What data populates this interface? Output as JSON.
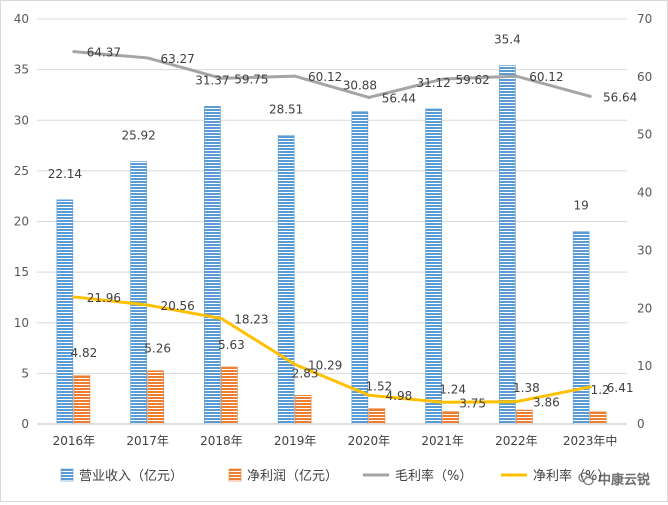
{
  "chart_data": {
    "type": "bar",
    "categories": [
      "2016年",
      "2017年",
      "2018年",
      "2019年",
      "2020年",
      "2021年",
      "2022年",
      "2023年中"
    ],
    "series": [
      {
        "name": "营业收入（亿元）",
        "type": "bar",
        "axis": "left",
        "color": "#5b9bd5",
        "values": [
          22.14,
          25.92,
          31.37,
          28.51,
          30.88,
          31.12,
          35.4,
          19
        ],
        "labels": [
          "22.14",
          "25.92",
          "31.37",
          "28.51",
          "30.88",
          "31.12",
          "35.4",
          "19"
        ]
      },
      {
        "name": "净利润（亿元）",
        "type": "bar",
        "axis": "left",
        "color": "#ed7d31",
        "values": [
          4.82,
          5.26,
          5.63,
          2.83,
          1.52,
          1.24,
          1.38,
          1.2
        ],
        "labels": [
          "4.82",
          "5.26",
          "5.63",
          "2.83",
          "1.52",
          "1.24",
          "1.38",
          "1.2"
        ]
      },
      {
        "name": "毛利率（%）",
        "type": "line",
        "axis": "right",
        "color": "#a5a5a5",
        "values": [
          64.37,
          63.27,
          59.75,
          60.12,
          56.44,
          59.62,
          60.12,
          56.64
        ],
        "labels": [
          "64.37",
          "63.27",
          "59.75",
          "60.12",
          "56.44",
          "59.62",
          "60.12",
          "56.64"
        ]
      },
      {
        "name": "净利率（%）",
        "type": "line",
        "axis": "right",
        "color": "#ffc000",
        "values": [
          21.96,
          20.56,
          18.23,
          10.29,
          4.98,
          3.75,
          3.86,
          6.41
        ],
        "labels": [
          "21.96",
          "20.56",
          "18.23",
          "10.29",
          "4.98",
          "3.75",
          "3.86",
          "6.41"
        ]
      }
    ],
    "y_left": {
      "ylim": [
        0,
        40
      ],
      "ticks": [
        "0",
        "5",
        "10",
        "15",
        "20",
        "25",
        "30",
        "35",
        "40"
      ]
    },
    "y_right": {
      "ylim": [
        0,
        70
      ],
      "ticks": [
        "0",
        "10",
        "20",
        "30",
        "40",
        "50",
        "60",
        "70"
      ]
    },
    "grid": true,
    "legend_placement": "bottom"
  },
  "watermark": {
    "text": "中康云锐",
    "icon": "wechat-icon"
  }
}
